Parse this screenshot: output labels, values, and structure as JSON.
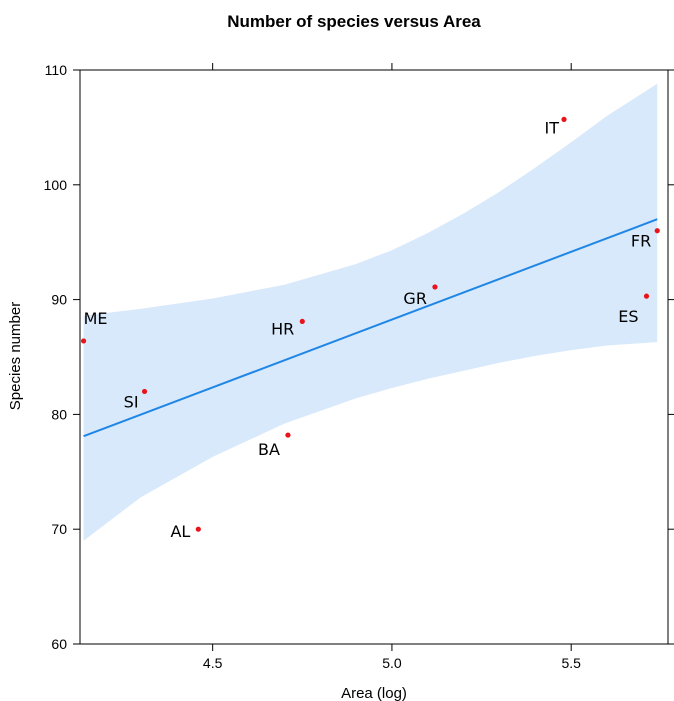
{
  "chart_data": {
    "type": "scatter",
    "title": "Number of species versus Area",
    "xlabel": "Area (log)",
    "ylabel": "Species number",
    "xlim": [
      4.13,
      5.77
    ],
    "ylim": [
      60,
      110
    ],
    "x_ticks": [
      4.5,
      5.0,
      5.5
    ],
    "y_ticks": [
      60,
      70,
      80,
      90,
      100,
      110
    ],
    "grid": false,
    "points": [
      {
        "label": "ME",
        "x": 4.14,
        "y": 86.4
      },
      {
        "label": "SI",
        "x": 4.31,
        "y": 82.0
      },
      {
        "label": "AL",
        "x": 4.46,
        "y": 70.0
      },
      {
        "label": "BA",
        "x": 4.71,
        "y": 78.2
      },
      {
        "label": "HR",
        "x": 4.75,
        "y": 88.1
      },
      {
        "label": "GR",
        "x": 5.12,
        "y": 91.1
      },
      {
        "label": "IT",
        "x": 5.48,
        "y": 105.7
      },
      {
        "label": "ES",
        "x": 5.71,
        "y": 90.3
      },
      {
        "label": "FR",
        "x": 5.74,
        "y": 96.0
      }
    ],
    "fit_line": {
      "x": [
        4.14,
        5.74
      ],
      "y": [
        78.1,
        97.0
      ]
    },
    "confidence_band": {
      "x": [
        4.14,
        4.3,
        4.5,
        4.7,
        4.9,
        5.0,
        5.1,
        5.2,
        5.3,
        5.4,
        5.5,
        5.6,
        5.74
      ],
      "lower": [
        69.0,
        72.8,
        76.3,
        79.2,
        81.4,
        82.3,
        83.1,
        83.8,
        84.5,
        85.1,
        85.6,
        86.0,
        86.3
      ],
      "upper": [
        88.6,
        89.2,
        90.1,
        91.3,
        93.1,
        94.3,
        95.8,
        97.5,
        99.4,
        101.5,
        103.7,
        106.0,
        108.8
      ]
    },
    "colors": {
      "points": "#e8141a",
      "line": "#1f86e6",
      "band": "#d8e9fb"
    }
  }
}
